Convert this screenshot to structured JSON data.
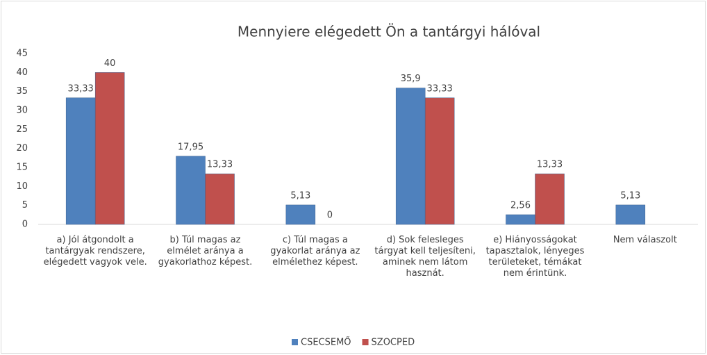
{
  "chart_data": {
    "type": "bar",
    "title": "Mennyiere elégedett Ön a tantárgyi hálóval",
    "categories": [
      "a)      Jól átgondolt a tantárgyak rendszere, elégedett vagyok vele.",
      "b)      Túl magas az elmélet aránya a gyakorlathoz képest.",
      "c)      Túl magas a gyakorlat aránya az elmélethez képest.",
      "d)      Sok felesleges tárgyat kell teljesíteni, aminek nem látom hasznát.",
      "e) Hiányosságokat tapasztalok, lényeges területeket, témákat nem érintünk.",
      "Nem válaszolt"
    ],
    "series": [
      {
        "name": "CSECSEMŐ",
        "color": "#4f81bd",
        "values": [
          33.33,
          17.95,
          5.13,
          35.9,
          2.56,
          5.13
        ],
        "value_labels": [
          "33,33",
          "17,95",
          "5,13",
          "35,9",
          "2,56",
          "5,13"
        ]
      },
      {
        "name": "SZOCPED",
        "color": "#c0504d",
        "values": [
          40,
          13.33,
          0,
          33.33,
          13.33,
          null
        ],
        "value_labels": [
          "40",
          "13,33",
          "0",
          "33,33",
          "13,33",
          null
        ]
      }
    ],
    "ylim": [
      0,
      45
    ],
    "yticks": [
      0,
      5,
      10,
      15,
      20,
      25,
      30,
      35,
      40,
      45
    ],
    "grid": false,
    "legend": "bottom"
  }
}
